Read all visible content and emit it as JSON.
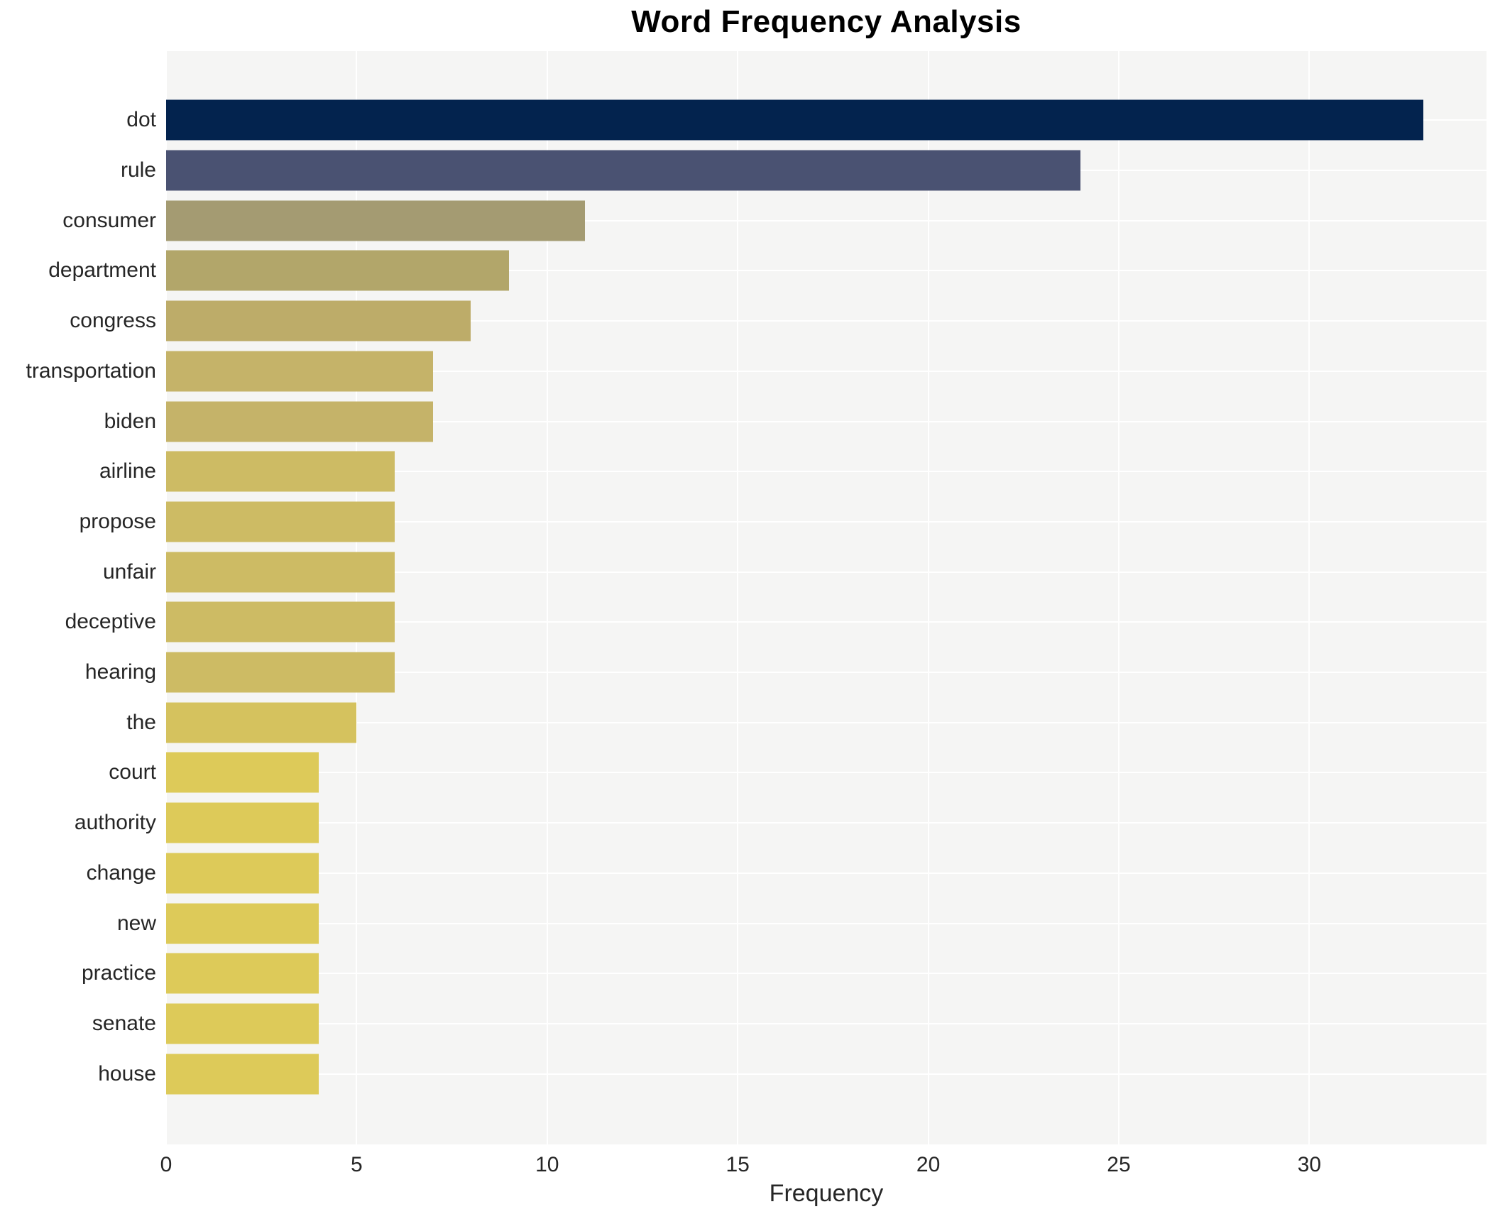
{
  "title": "Word Frequency Analysis",
  "chart_data": {
    "type": "bar",
    "orientation": "horizontal",
    "title": "Word Frequency Analysis",
    "xlabel": "Frequency",
    "ylabel": "",
    "categories": [
      "dot",
      "rule",
      "consumer",
      "department",
      "congress",
      "transportation",
      "biden",
      "airline",
      "propose",
      "unfair",
      "deceptive",
      "hearing",
      "the",
      "court",
      "authority",
      "change",
      "new",
      "practice",
      "senate",
      "house"
    ],
    "values": [
      33,
      24,
      11,
      9,
      8,
      7,
      7,
      6,
      6,
      6,
      6,
      6,
      5,
      4,
      4,
      4,
      4,
      4,
      4,
      4
    ],
    "bar_colors": [
      "#03234e",
      "#4a5272",
      "#a49b72",
      "#b2a66a",
      "#bdac69",
      "#c5b369",
      "#c5b369",
      "#cdbb64",
      "#cdbb64",
      "#cdbb64",
      "#cdbb64",
      "#cdbb64",
      "#d5c25e",
      "#ddca59",
      "#ddca59",
      "#ddca59",
      "#ddca59",
      "#ddca59",
      "#ddca59",
      "#ddca59"
    ],
    "x_ticks": [
      0,
      5,
      10,
      15,
      20,
      25,
      30
    ],
    "xlim": [
      0,
      34.65
    ],
    "grid": true,
    "legend": "none",
    "colors": {
      "plot_background": "#f5f5f4",
      "figure_background": "#ffffff",
      "gridline": "#ffffff",
      "text": "#262626",
      "title_text": "#000000"
    }
  }
}
